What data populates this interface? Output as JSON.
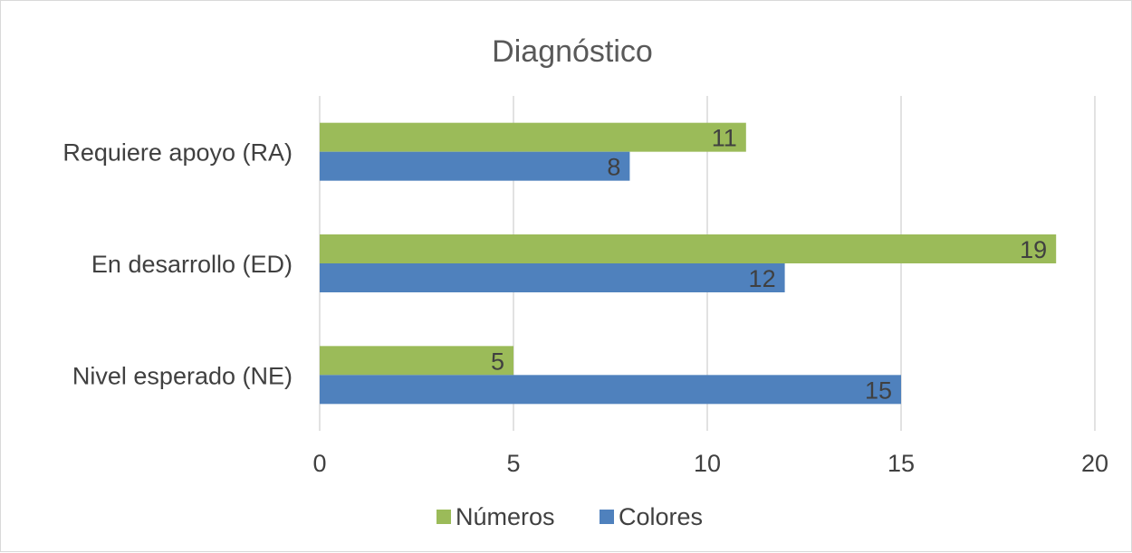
{
  "chart_data": {
    "type": "bar",
    "orientation": "horizontal",
    "title": "Diagnóstico",
    "categories": [
      "Requiere apoyo (RA)",
      "En desarrollo (ED)",
      "Nivel esperado (NE)"
    ],
    "series": [
      {
        "name": "Números",
        "values": [
          11,
          19,
          5
        ],
        "color": "#9BBB59"
      },
      {
        "name": "Colores",
        "values": [
          8,
          12,
          15
        ],
        "color": "#4F81BD"
      }
    ],
    "xlim": [
      0,
      20
    ],
    "xticks": [
      0,
      5,
      10,
      15,
      20
    ],
    "grid": true,
    "legend_position": "bottom",
    "data_labels": true
  }
}
